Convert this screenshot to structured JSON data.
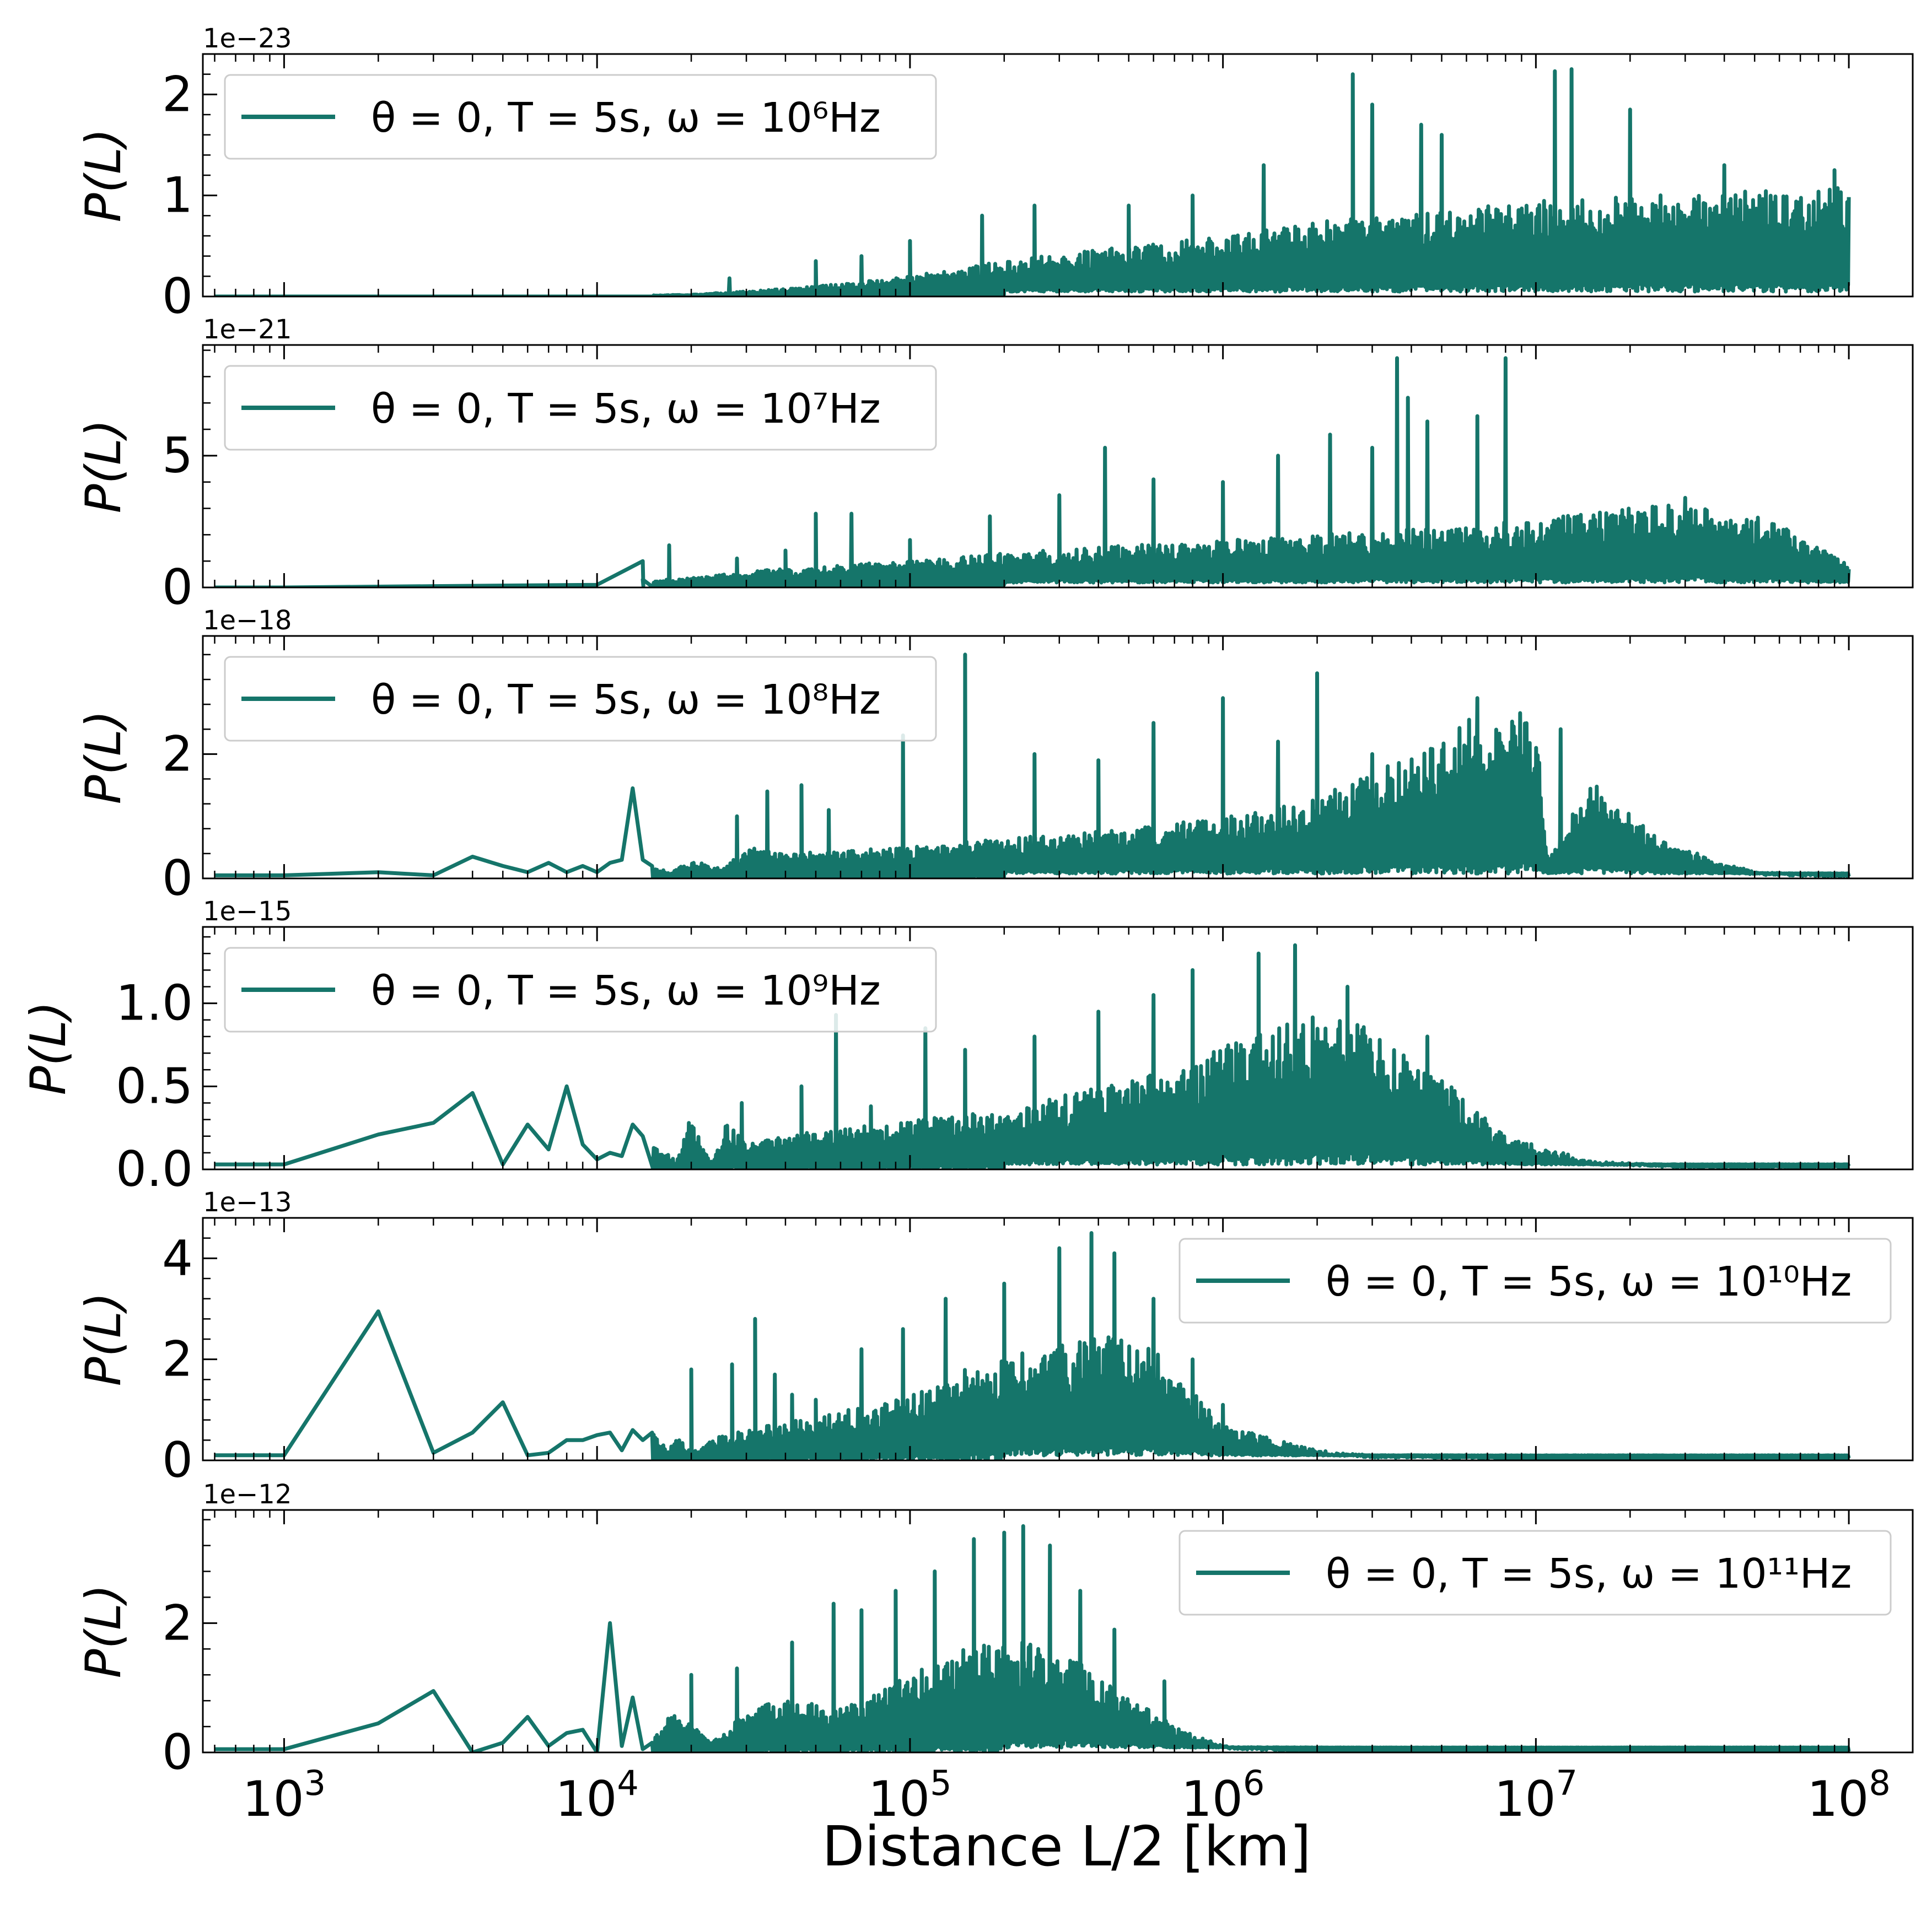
{
  "figure": {
    "xlabel": "Distance L/2 [km]",
    "ylabel": "P(L)",
    "line_color": "#15756a",
    "x_tick_labels": [
      "10^3",
      "10^4",
      "10^5",
      "10^6",
      "10^7",
      "10^8"
    ]
  },
  "chart_data": [
    {
      "type": "line",
      "series": [
        {
          "name": "θ = 0, T = 5s, ω = 10^6 Hz"
        }
      ],
      "xscale": "log",
      "xlim": [
        550,
        160000000
      ],
      "ylim": [
        0,
        2.4
      ],
      "yticks": [
        0,
        1,
        2
      ],
      "ytick_labels": [
        "0",
        "1",
        "2"
      ],
      "offset_text": "1e−23",
      "legend": "top-left",
      "legend_label": "θ = 0, T = 5s, ω = 10⁶Hz",
      "x": [
        600,
        1000,
        3000,
        10000,
        20000,
        30000,
        50000,
        70000,
        100000,
        200000,
        500000,
        1000000,
        2000000,
        5000000,
        10000000,
        20000000,
        50000000,
        100000000
      ],
      "y": [
        0.0,
        0.0,
        0.0,
        0.0,
        0.02,
        0.05,
        0.1,
        0.15,
        0.2,
        0.35,
        0.5,
        0.6,
        0.75,
        0.85,
        0.95,
        1.0,
        1.05,
        1.1
      ],
      "peaks": [
        [
          26500,
          0.18
        ],
        [
          50000,
          0.35
        ],
        [
          70000,
          0.4
        ],
        [
          100000,
          0.55
        ],
        [
          170000,
          0.8
        ],
        [
          250000,
          0.9
        ],
        [
          500000,
          0.9
        ],
        [
          800000,
          1.0
        ],
        [
          1350000,
          1.3
        ],
        [
          2600000,
          2.2
        ],
        [
          3000000,
          1.9
        ],
        [
          4300000,
          1.7
        ],
        [
          5000000,
          1.6
        ],
        [
          11500000,
          2.23
        ],
        [
          13000000,
          2.25
        ],
        [
          20000000,
          1.85
        ],
        [
          40000000,
          1.3
        ],
        [
          90000000,
          1.25
        ]
      ]
    },
    {
      "type": "line",
      "series": [
        {
          "name": "θ = 0, T = 5s, ω = 10^7 Hz"
        }
      ],
      "xscale": "log",
      "xlim": [
        550,
        160000000
      ],
      "ylim": [
        0,
        9.2
      ],
      "yticks": [
        0,
        5
      ],
      "ytick_labels": [
        "0",
        "5"
      ],
      "offset_text": "1e−21",
      "legend": "top-left",
      "legend_label": "θ = 0, T = 5s, ω = 10⁷Hz",
      "x": [
        600,
        1000,
        3000,
        10000,
        14000,
        17000,
        20000,
        30000,
        50000,
        70000,
        100000,
        200000,
        500000,
        1000000,
        2000000,
        5000000,
        10000000,
        20000000,
        35000000,
        60000000,
        100000000
      ],
      "y": [
        0.0,
        0.0,
        0.05,
        0.1,
        0.3,
        0.3,
        0.4,
        0.6,
        0.8,
        0.9,
        1.0,
        1.3,
        1.6,
        1.8,
        2.0,
        2.3,
        2.6,
        3.0,
        3.3,
        2.5,
        0.9
      ],
      "peaks": [
        [
          14000,
          1.0
        ],
        [
          17000,
          1.6
        ],
        [
          28000,
          1.1
        ],
        [
          40000,
          1.4
        ],
        [
          50000,
          2.8
        ],
        [
          65000,
          2.8
        ],
        [
          100000,
          1.8
        ],
        [
          180000,
          2.7
        ],
        [
          300000,
          3.5
        ],
        [
          420000,
          5.3
        ],
        [
          600000,
          4.1
        ],
        [
          1000000,
          4.0
        ],
        [
          1500000,
          5.0
        ],
        [
          2200000,
          5.8
        ],
        [
          3000000,
          5.3
        ],
        [
          3600000,
          8.7
        ],
        [
          3900000,
          7.2
        ],
        [
          4500000,
          6.3
        ],
        [
          6500000,
          6.5
        ],
        [
          8000000,
          8.7
        ],
        [
          30000000,
          3.4
        ]
      ]
    },
    {
      "type": "line",
      "series": [
        {
          "name": "θ = 0, T = 5s, ω = 10^8 Hz"
        }
      ],
      "xscale": "log",
      "xlim": [
        550,
        160000000
      ],
      "ylim": [
        0,
        3.9
      ],
      "yticks": [
        0,
        2
      ],
      "ytick_labels": [
        "0",
        "2"
      ],
      "offset_text": "1e−18",
      "legend": "top-left",
      "legend_label": "θ = 0, T = 5s, ω = 10⁸Hz",
      "x": [
        600,
        1000,
        2000,
        3000,
        4000,
        5000,
        6000,
        7000,
        8000,
        9000,
        10000,
        11000,
        12000,
        13000,
        14000,
        15000,
        17000,
        20000,
        25000,
        30000,
        40000,
        60000,
        100000,
        200000,
        500000,
        1000000,
        2000000,
        5000000,
        7000000,
        10000000,
        11000000,
        15000000,
        25000000,
        50000000,
        100000000
      ],
      "y": [
        0.05,
        0.05,
        0.1,
        0.05,
        0.35,
        0.2,
        0.1,
        0.25,
        0.1,
        0.2,
        0.1,
        0.25,
        0.3,
        1.45,
        0.3,
        0.2,
        0.1,
        0.3,
        0.15,
        0.5,
        0.4,
        0.45,
        0.5,
        0.65,
        0.8,
        1.0,
        1.3,
        2.2,
        2.8,
        2.6,
        0.3,
        1.6,
        0.6,
        0.1,
        0.05
      ],
      "peaks": [
        [
          28000,
          1.0
        ],
        [
          35000,
          1.4
        ],
        [
          45000,
          1.5
        ],
        [
          55000,
          1.1
        ],
        [
          95000,
          2.3
        ],
        [
          150000,
          3.6
        ],
        [
          250000,
          2.0
        ],
        [
          400000,
          1.9
        ],
        [
          600000,
          2.5
        ],
        [
          1000000,
          2.9
        ],
        [
          1500000,
          2.2
        ],
        [
          2000000,
          3.3
        ],
        [
          3000000,
          2.0
        ],
        [
          6500000,
          2.9
        ],
        [
          12000000,
          2.4
        ]
      ]
    },
    {
      "type": "line",
      "series": [
        {
          "name": "θ = 0, T = 5s, ω = 10^9 Hz"
        }
      ],
      "xscale": "log",
      "xlim": [
        550,
        160000000
      ],
      "ylim": [
        0,
        1.46
      ],
      "yticks": [
        0.0,
        0.5,
        1.0
      ],
      "ytick_labels": [
        "0.0",
        "0.5",
        "1.0"
      ],
      "offset_text": "1e−15",
      "legend": "top-left",
      "legend_label": "θ = 0, T = 5s, ω = 10⁹Hz",
      "x": [
        600,
        1000,
        2000,
        3000,
        4000,
        5000,
        6000,
        7000,
        8000,
        9000,
        10000,
        11000,
        12000,
        13000,
        14000,
        16000,
        18000,
        20000,
        23000,
        26000,
        30000,
        40000,
        60000,
        100000,
        200000,
        400000,
        700000,
        1000000,
        1500000,
        2000000,
        3000000,
        5000000,
        8000000,
        15000000,
        30000000,
        100000000
      ],
      "y": [
        0.03,
        0.03,
        0.21,
        0.28,
        0.46,
        0.03,
        0.27,
        0.12,
        0.5,
        0.15,
        0.06,
        0.1,
        0.08,
        0.27,
        0.2,
        0.12,
        0.05,
        0.33,
        0.04,
        0.28,
        0.15,
        0.2,
        0.25,
        0.3,
        0.35,
        0.5,
        0.6,
        0.75,
        0.85,
        0.95,
        0.85,
        0.55,
        0.2,
        0.05,
        0.02,
        0.02
      ],
      "peaks": [
        [
          29000,
          0.4
        ],
        [
          45000,
          0.5
        ],
        [
          58000,
          0.93
        ],
        [
          75000,
          0.38
        ],
        [
          112000,
          0.85
        ],
        [
          150000,
          0.72
        ],
        [
          250000,
          0.8
        ],
        [
          400000,
          0.95
        ],
        [
          600000,
          1.05
        ],
        [
          800000,
          1.2
        ],
        [
          1300000,
          1.3
        ],
        [
          1700000,
          1.35
        ],
        [
          2500000,
          1.1
        ],
        [
          4500000,
          0.8
        ]
      ]
    },
    {
      "type": "line",
      "series": [
        {
          "name": "θ = 0, T = 5s, ω = 10^10 Hz"
        }
      ],
      "xscale": "log",
      "xlim": [
        550,
        160000000
      ],
      "ylim": [
        0,
        4.8
      ],
      "yticks": [
        0,
        2,
        4
      ],
      "ytick_labels": [
        "0",
        "2",
        "4"
      ],
      "offset_text": "1e−13",
      "legend": "top-right",
      "legend_label": "θ = 0, T = 5s, ω = 10¹⁰Hz",
      "x": [
        600,
        1000,
        2000,
        3000,
        4000,
        5000,
        6000,
        7000,
        8000,
        9000,
        10000,
        11000,
        12000,
        13000,
        14000,
        15000,
        17000,
        18000,
        20000,
        25000,
        30000,
        50000,
        80000,
        100000,
        150000,
        250000,
        400000,
        600000,
        1000000,
        2000000,
        3000000,
        10000000,
        100000000
      ],
      "y": [
        0.1,
        0.1,
        2.95,
        0.15,
        0.55,
        1.15,
        0.1,
        0.15,
        0.4,
        0.4,
        0.5,
        0.55,
        0.2,
        0.6,
        0.4,
        0.55,
        0.2,
        0.5,
        0.15,
        0.5,
        0.6,
        0.9,
        1.1,
        1.3,
        1.8,
        2.2,
        2.5,
        2.2,
        0.7,
        0.2,
        0.1,
        0.05,
        0.05
      ],
      "peaks": [
        [
          20000,
          1.8
        ],
        [
          27000,
          1.9
        ],
        [
          32000,
          2.8
        ],
        [
          37000,
          1.7
        ],
        [
          42000,
          1.3
        ],
        [
          50000,
          1.2
        ],
        [
          70000,
          2.2
        ],
        [
          95000,
          2.6
        ],
        [
          130000,
          3.2
        ],
        [
          200000,
          3.5
        ],
        [
          300000,
          4.2
        ],
        [
          380000,
          4.5
        ],
        [
          450000,
          4.1
        ],
        [
          600000,
          3.2
        ],
        [
          800000,
          2.0
        ],
        [
          1000000,
          1.1
        ]
      ]
    },
    {
      "type": "line",
      "series": [
        {
          "name": "θ = 0, T = 5s, ω = 10^11 Hz"
        }
      ],
      "xscale": "log",
      "xlim": [
        550,
        160000000
      ],
      "ylim": [
        0,
        3.75
      ],
      "yticks": [
        0,
        2
      ],
      "ytick_labels": [
        "0",
        "2"
      ],
      "offset_text": "1e−12",
      "legend": "top-right",
      "legend_label": "θ = 0, T = 5s, ω = 10¹¹Hz",
      "x": [
        600,
        1000,
        2000,
        3000,
        4000,
        5000,
        6000,
        7000,
        8000,
        9000,
        10000,
        11000,
        12000,
        13000,
        14000,
        15000,
        17000,
        20000,
        23000,
        26000,
        30000,
        40000,
        60000,
        80000,
        100000,
        150000,
        200000,
        300000,
        450000,
        700000,
        1000000,
        2000000,
        10000000,
        100000000
      ],
      "y": [
        0.05,
        0.05,
        0.45,
        0.95,
        0.0,
        0.15,
        0.55,
        0.1,
        0.3,
        0.35,
        0.0,
        2.0,
        0.1,
        0.85,
        0.05,
        0.15,
        0.6,
        0.45,
        0.15,
        0.3,
        0.7,
        0.8,
        0.7,
        1.0,
        1.2,
        1.6,
        1.8,
        1.6,
        1.0,
        0.4,
        0.1,
        0.03,
        0.02,
        0.02
      ],
      "peaks": [
        [
          20000,
          1.2
        ],
        [
          28000,
          1.3
        ],
        [
          42000,
          1.7
        ],
        [
          57000,
          2.3
        ],
        [
          70000,
          2.2
        ],
        [
          90000,
          2.5
        ],
        [
          120000,
          2.8
        ],
        [
          160000,
          3.3
        ],
        [
          200000,
          3.4
        ],
        [
          230000,
          3.5
        ],
        [
          280000,
          3.2
        ],
        [
          350000,
          2.5
        ],
        [
          450000,
          1.9
        ],
        [
          650000,
          1.1
        ]
      ]
    }
  ]
}
